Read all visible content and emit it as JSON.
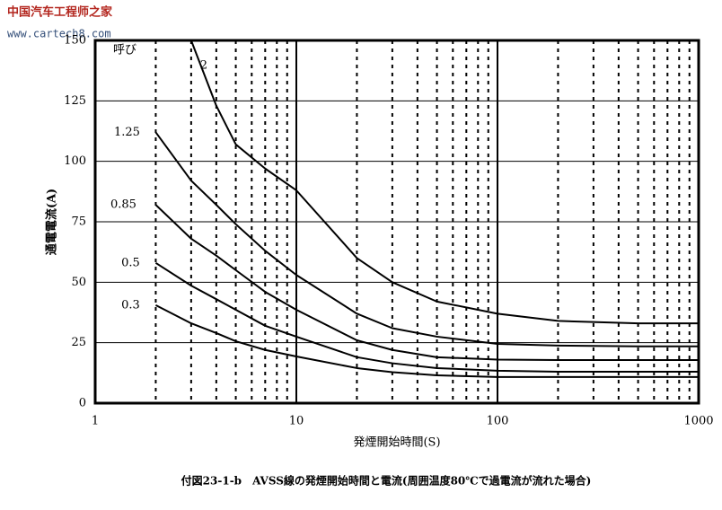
{
  "chart_data": {
    "type": "line",
    "watermark": {
      "name": "中国汽车工程师之家",
      "url": "www.cartech8.com"
    },
    "caption": "付図23-1-b　AVSS線の発煙開始時間と電流(周囲温度80℃で過電流が流れた場合)",
    "x_label": "発煙開始時間(S)",
    "y_label": "通電電流(A)",
    "legend_title": "呼び",
    "x": [
      2,
      3,
      4,
      5,
      7,
      10,
      20,
      30,
      50,
      100,
      200,
      500,
      1000
    ],
    "series": [
      {
        "name": "2",
        "color": "#000000",
        "values": [
          null,
          150,
          123,
          107,
          97,
          88,
          60,
          50,
          42,
          37,
          34,
          33,
          33
        ]
      },
      {
        "name": "1.25",
        "color": "#000000",
        "values": [
          112,
          92,
          82,
          74,
          63,
          53,
          37,
          31,
          27.5,
          24.5,
          23.8,
          23.5,
          23.5
        ]
      },
      {
        "name": "0.85",
        "color": "#000000",
        "values": [
          82,
          68,
          61,
          55,
          46,
          38.6,
          26,
          22,
          19,
          18,
          17.8,
          17.8,
          17.8
        ]
      },
      {
        "name": "0.5",
        "color": "#000000",
        "values": [
          58,
          48.6,
          43,
          38.6,
          32,
          27.5,
          19,
          16.5,
          14.5,
          13.4,
          13,
          13,
          13
        ]
      },
      {
        "name": "0.3",
        "color": "#000000",
        "values": [
          40.5,
          33,
          29,
          25.6,
          22,
          19.3,
          14.5,
          12.8,
          11.5,
          10.8,
          10.8,
          10.8,
          10.8
        ]
      }
    ],
    "xscale": "log",
    "xlim": [
      1,
      1000
    ],
    "xticks": [
      1,
      10,
      100,
      1000
    ],
    "xminorticks": [
      2,
      3,
      4,
      5,
      6,
      7,
      8,
      9,
      20,
      30,
      40,
      50,
      60,
      70,
      80,
      90,
      200,
      300,
      400,
      500,
      600,
      700,
      800,
      900
    ],
    "ylim": [
      0,
      150
    ],
    "yticks": [
      0,
      25,
      50,
      75,
      100,
      125,
      150
    ],
    "grid": true
  }
}
